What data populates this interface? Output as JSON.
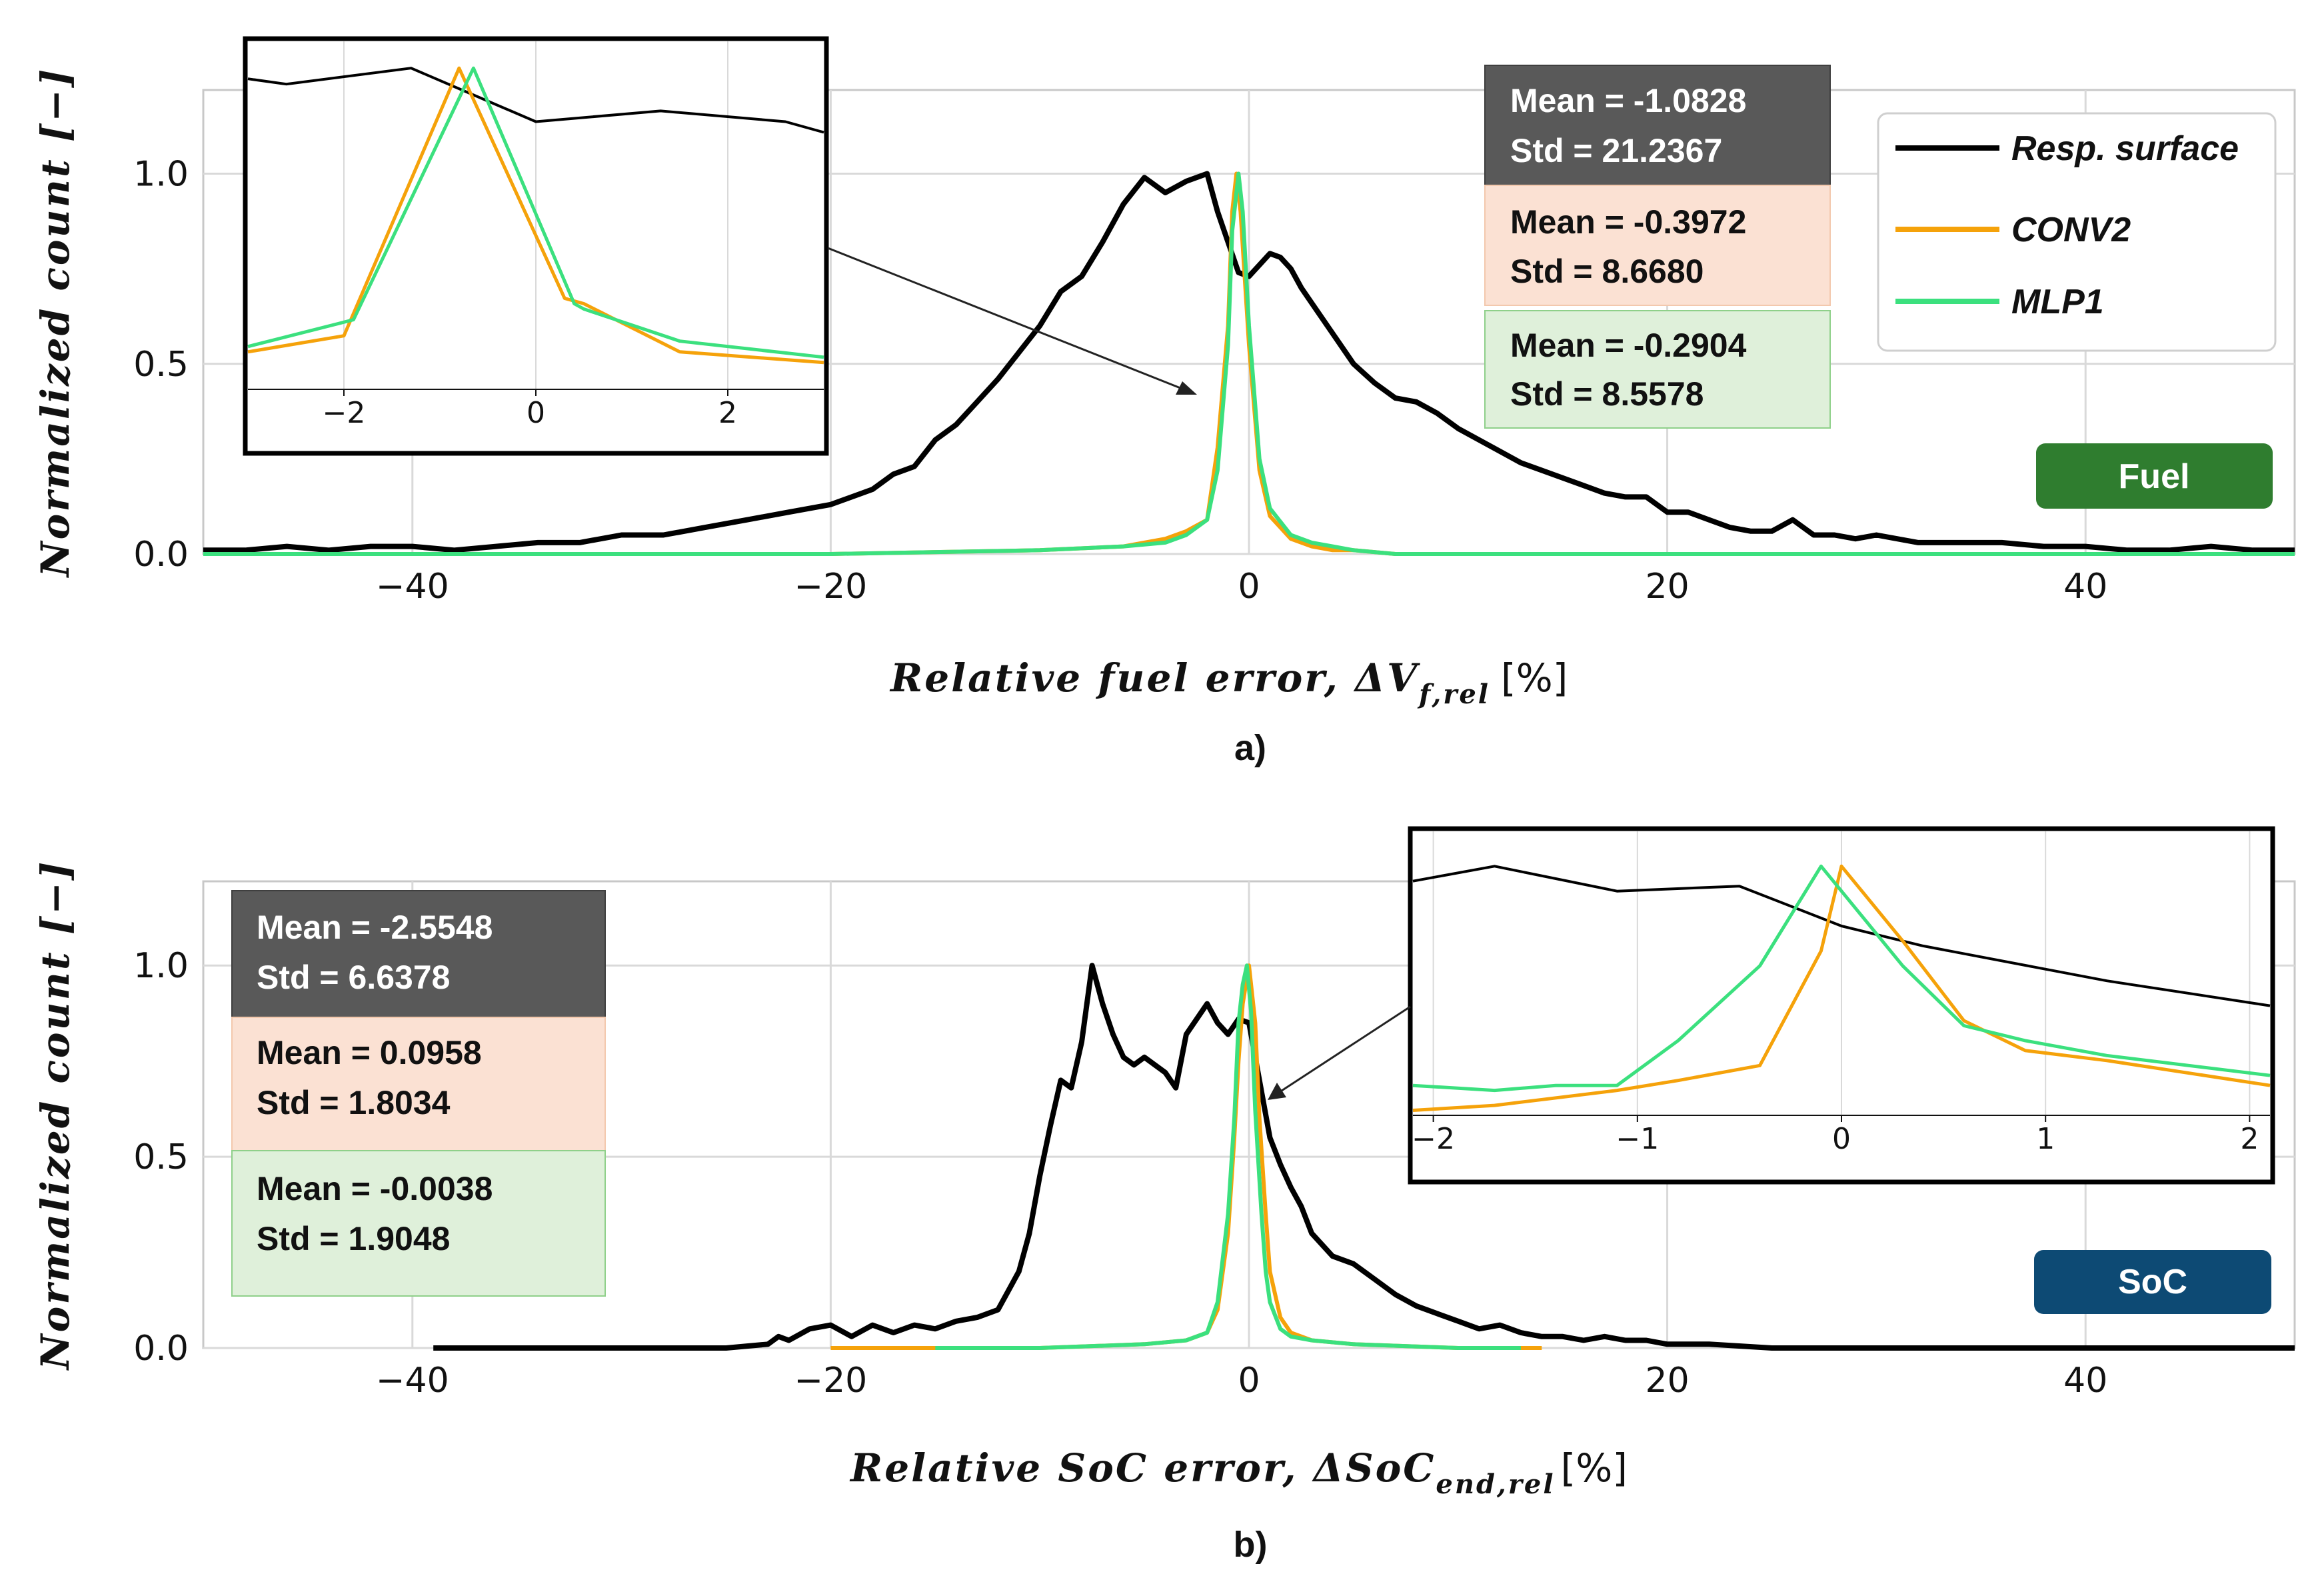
{
  "colors": {
    "resp": "#000000",
    "conv": "#f5a20a",
    "mlp": "#3be07e",
    "grid": "#d9d9d9",
    "box_resp": "#595959",
    "box_conv": "#fbe1d3",
    "box_mlp": "#dff0da",
    "badge_fuel": "#2f7d2f",
    "badge_soc": "#0d4a74"
  },
  "legend": [
    "Resp. surface",
    "CONV2",
    "MLP1"
  ],
  "chart_data": [
    {
      "type": "line",
      "panel_label": "a)",
      "badge": "Fuel",
      "ylabel": "Normalized count [−]",
      "xlabel_text": "Relative fuel error, ΔV",
      "xlabel_sub": "f,rel",
      "xlabel_unit": "[%]",
      "xlim": [
        -50,
        50
      ],
      "ylim": [
        0,
        1.22
      ],
      "xticks": [
        -40,
        -20,
        0,
        20,
        40
      ],
      "xtick_labels": [
        "−40",
        "−20",
        "0",
        "20",
        "40"
      ],
      "yticks": [
        0.0,
        0.5,
        1.0
      ],
      "ytick_labels": [
        "0.0",
        "0.5",
        "1.0"
      ],
      "stats": [
        {
          "mean": "Mean = -1.0828",
          "std": "Std = 21.2367"
        },
        {
          "mean": "Mean = -0.3972",
          "std": "Std = 8.6680"
        },
        {
          "mean": "Mean = -0.2904",
          "std": "Std = 8.5578"
        }
      ],
      "series": [
        {
          "name": "Resp. surface",
          "x": [
            -50,
            -48,
            -46,
            -44,
            -42,
            -40,
            -38,
            -36,
            -34,
            -32,
            -30,
            -28,
            -26,
            -24,
            -22,
            -20,
            -18,
            -17,
            -16,
            -15,
            -14,
            -13,
            -12,
            -11,
            -10,
            -9,
            -8,
            -7,
            -6,
            -5,
            -4,
            -3,
            -2,
            -1.5,
            -1,
            -0.5,
            0,
            0.5,
            1,
            1.5,
            2,
            2.5,
            3,
            4,
            5,
            6,
            7,
            8,
            9,
            10,
            11,
            12,
            13,
            14,
            15,
            16,
            17,
            18,
            19,
            20,
            21,
            22,
            23,
            24,
            25,
            26,
            27,
            28,
            29,
            30,
            32,
            34,
            36,
            38,
            40,
            42,
            44,
            46,
            48,
            50
          ],
          "values": [
            0.01,
            0.01,
            0.02,
            0.01,
            0.02,
            0.02,
            0.01,
            0.02,
            0.03,
            0.03,
            0.05,
            0.05,
            0.07,
            0.09,
            0.11,
            0.13,
            0.17,
            0.21,
            0.23,
            0.3,
            0.34,
            0.4,
            0.46,
            0.53,
            0.6,
            0.69,
            0.73,
            0.82,
            0.92,
            0.99,
            0.95,
            0.98,
            1.0,
            0.9,
            0.82,
            0.74,
            0.73,
            0.76,
            0.79,
            0.78,
            0.75,
            0.7,
            0.66,
            0.58,
            0.5,
            0.45,
            0.41,
            0.4,
            0.37,
            0.33,
            0.3,
            0.27,
            0.24,
            0.22,
            0.2,
            0.18,
            0.16,
            0.15,
            0.15,
            0.11,
            0.11,
            0.09,
            0.07,
            0.06,
            0.06,
            0.09,
            0.05,
            0.05,
            0.04,
            0.05,
            0.03,
            0.03,
            0.03,
            0.02,
            0.02,
            0.01,
            0.01,
            0.02,
            0.01,
            0.01
          ]
        },
        {
          "name": "CONV2",
          "x": [
            -50,
            -20,
            -10,
            -6,
            -4,
            -3,
            -2,
            -1.5,
            -1,
            -0.8,
            -0.6,
            -0.4,
            0,
            0.5,
            1,
            2,
            3,
            4,
            5,
            7,
            10,
            20,
            50
          ],
          "values": [
            0,
            0,
            0.01,
            0.02,
            0.04,
            0.06,
            0.09,
            0.28,
            0.6,
            0.9,
            1.0,
            0.9,
            0.55,
            0.22,
            0.1,
            0.04,
            0.02,
            0.01,
            0.01,
            0,
            0,
            0,
            0
          ]
        },
        {
          "name": "MLP1",
          "x": [
            -50,
            -20,
            -10,
            -6,
            -4,
            -3,
            -2,
            -1.5,
            -1,
            -0.8,
            -0.5,
            -0.3,
            0,
            0.5,
            1,
            2,
            3,
            4,
            5,
            7,
            10,
            20,
            50
          ],
          "values": [
            0,
            0,
            0.01,
            0.02,
            0.03,
            0.05,
            0.09,
            0.22,
            0.55,
            0.85,
            1.0,
            0.9,
            0.6,
            0.25,
            0.12,
            0.05,
            0.03,
            0.02,
            0.01,
            0,
            0,
            0,
            0
          ]
        }
      ],
      "inset": {
        "xlim": [
          -3,
          3
        ],
        "ylim": [
          0.4,
          1.05
        ],
        "xticks": [
          -2,
          0,
          2
        ],
        "xtick_labels": [
          "−2",
          "0",
          "2"
        ],
        "series": [
          {
            "name": "Resp. surface",
            "x": [
              -3,
              -2.6,
              -1.3,
              0,
              1.3,
              2.6,
              3
            ],
            "values": [
              0.98,
              0.97,
              1.0,
              0.9,
              0.92,
              0.9,
              0.88
            ]
          },
          {
            "name": "CONV2",
            "x": [
              -3,
              -2,
              -0.8,
              0.3,
              0.5,
              1.5,
              3
            ],
            "values": [
              0.47,
              0.5,
              1.0,
              0.57,
              0.56,
              0.47,
              0.45
            ]
          },
          {
            "name": "MLP1",
            "x": [
              -3,
              -1.9,
              -0.65,
              0.4,
              0.5,
              1.5,
              3
            ],
            "values": [
              0.48,
              0.53,
              1.0,
              0.56,
              0.55,
              0.49,
              0.46
            ]
          }
        ]
      }
    },
    {
      "type": "line",
      "panel_label": "b)",
      "badge": "SoC",
      "ylabel": "Normalized count [−]",
      "xlabel_text": "Relative SoC error, ΔSoC",
      "xlabel_sub": "end,rel",
      "xlabel_unit": "[%]",
      "xlim": [
        -50,
        50
      ],
      "ylim": [
        0,
        1.22
      ],
      "xticks": [
        -40,
        -20,
        0,
        20,
        40
      ],
      "xtick_labels": [
        "−40",
        "−20",
        "0",
        "20",
        "40"
      ],
      "yticks": [
        0.0,
        0.5,
        1.0
      ],
      "ytick_labels": [
        "0.0",
        "0.5",
        "1.0"
      ],
      "stats": [
        {
          "mean": "Mean = -2.5548",
          "std": "Std = 6.6378"
        },
        {
          "mean": "Mean = 0.0958",
          "std": "Std = 1.8034"
        },
        {
          "mean": "Mean = -0.0038",
          "std": "Std = 1.9048"
        }
      ],
      "series": [
        {
          "name": "Resp. surface",
          "x": [
            -39,
            -35,
            -30,
            -25,
            -23,
            -22.5,
            -22,
            -21,
            -20,
            -19,
            -18,
            -17,
            -16,
            -15,
            -14,
            -13,
            -12,
            -11.5,
            -11,
            -10.5,
            -10,
            -9.5,
            -9,
            -8.5,
            -8,
            -7.5,
            -7,
            -6.5,
            -6,
            -5.5,
            -5,
            -4.5,
            -4,
            -3.5,
            -3,
            -2.5,
            -2,
            -1.5,
            -1,
            -0.5,
            0,
            0.5,
            1,
            1.5,
            2,
            2.5,
            3,
            4,
            5,
            6,
            7,
            8,
            9,
            10,
            11,
            12,
            13,
            14,
            15,
            16,
            17,
            18,
            19,
            20,
            22,
            25,
            30,
            35,
            40,
            45,
            50
          ],
          "values": [
            0,
            0,
            0,
            0,
            0.01,
            0.03,
            0.02,
            0.05,
            0.06,
            0.03,
            0.06,
            0.04,
            0.06,
            0.05,
            0.07,
            0.08,
            0.1,
            0.15,
            0.2,
            0.3,
            0.45,
            0.58,
            0.7,
            0.68,
            0.8,
            1.0,
            0.9,
            0.82,
            0.76,
            0.74,
            0.76,
            0.74,
            0.72,
            0.68,
            0.82,
            0.86,
            0.9,
            0.85,
            0.82,
            0.86,
            0.85,
            0.7,
            0.55,
            0.48,
            0.42,
            0.37,
            0.3,
            0.24,
            0.22,
            0.18,
            0.14,
            0.11,
            0.09,
            0.07,
            0.05,
            0.06,
            0.04,
            0.03,
            0.03,
            0.02,
            0.03,
            0.02,
            0.02,
            0.01,
            0.01,
            0,
            0,
            0,
            0,
            0,
            0
          ]
        },
        {
          "name": "CONV2",
          "x": [
            -20,
            -15,
            -10,
            -5,
            -3,
            -2,
            -1.5,
            -1,
            -0.7,
            -0.5,
            -0.3,
            0,
            0.3,
            0.5,
            0.8,
            1,
            1.5,
            2,
            3,
            5,
            10,
            14
          ],
          "values": [
            0,
            0,
            0,
            0.01,
            0.02,
            0.04,
            0.1,
            0.3,
            0.55,
            0.75,
            0.9,
            1.0,
            0.85,
            0.6,
            0.35,
            0.2,
            0.08,
            0.04,
            0.02,
            0.01,
            0,
            0
          ]
        },
        {
          "name": "MLP1",
          "x": [
            -15,
            -10,
            -5,
            -3,
            -2,
            -1.5,
            -1,
            -0.7,
            -0.5,
            -0.3,
            -0.1,
            0.1,
            0.3,
            0.6,
            0.8,
            1,
            1.5,
            2,
            3,
            5,
            10,
            13
          ],
          "values": [
            0,
            0,
            0.01,
            0.02,
            0.04,
            0.12,
            0.35,
            0.6,
            0.85,
            0.95,
            1.0,
            0.88,
            0.62,
            0.35,
            0.2,
            0.12,
            0.05,
            0.03,
            0.02,
            0.01,
            0,
            0
          ]
        }
      ],
      "inset": {
        "xlim": [
          -2.1,
          2.1
        ],
        "ylim": [
          0.5,
          1.07
        ],
        "xticks": [
          -2,
          -1,
          0,
          1,
          2
        ],
        "xtick_labels": [
          "−2",
          "−1",
          "0",
          "1",
          "2"
        ],
        "series": [
          {
            "name": "Resp. surface",
            "x": [
              -2.1,
              -1.7,
              -1.1,
              -0.5,
              0,
              0.4,
              1.3,
              2.1
            ],
            "values": [
              0.97,
              1.0,
              0.95,
              0.96,
              0.88,
              0.84,
              0.77,
              0.72
            ]
          },
          {
            "name": "CONV2",
            "x": [
              -2.1,
              -1.7,
              -1.1,
              -0.8,
              -0.4,
              -0.1,
              0,
              0.3,
              0.6,
              0.9,
              1.3,
              2.1
            ],
            "values": [
              0.51,
              0.52,
              0.55,
              0.57,
              0.6,
              0.83,
              1.0,
              0.85,
              0.69,
              0.63,
              0.61,
              0.56
            ]
          },
          {
            "name": "MLP1",
            "x": [
              -2.1,
              -1.7,
              -1.4,
              -1.1,
              -0.8,
              -0.4,
              -0.1,
              0.3,
              0.6,
              0.9,
              1.3,
              2.1
            ],
            "values": [
              0.56,
              0.55,
              0.56,
              0.56,
              0.65,
              0.8,
              1.0,
              0.8,
              0.68,
              0.65,
              0.62,
              0.58
            ]
          }
        ]
      }
    }
  ]
}
